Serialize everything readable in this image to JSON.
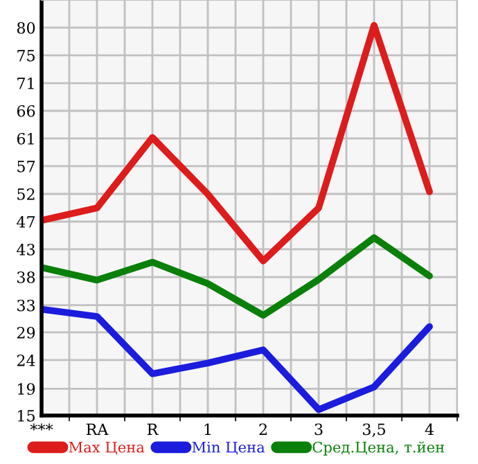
{
  "chart_data": {
    "type": "line",
    "categories": [
      "***",
      "RA",
      "R",
      "1",
      "2",
      "3",
      "3,5",
      "4"
    ],
    "series": [
      {
        "name": "Max Цена",
        "color": "#dd1c1c",
        "values": [
          47.7,
          49.8,
          61.6,
          52.1,
          40.9,
          49.8,
          80.4,
          52.5
        ]
      },
      {
        "name": "Min Цена",
        "color": "#1c1cdd",
        "values": [
          32.8,
          31.6,
          22.0,
          23.8,
          26.0,
          16.0,
          19.8,
          29.9
        ]
      },
      {
        "name": "Сред.Цена, т.йен",
        "color": "#0a800a",
        "values": [
          39.8,
          37.7,
          40.7,
          37.1,
          31.8,
          37.8,
          44.8,
          38.4
        ]
      }
    ],
    "ylim": [
      15,
      84.64
    ],
    "yticks": [
      {
        "value": 15,
        "label": "15"
      },
      {
        "value": 19.49,
        "label": "19"
      },
      {
        "value": 24.29,
        "label": "24"
      },
      {
        "value": 28.93,
        "label": "29"
      },
      {
        "value": 33.49,
        "label": "33"
      },
      {
        "value": 38.21,
        "label": "38"
      },
      {
        "value": 42.86,
        "label": "43"
      },
      {
        "value": 47.5,
        "label": "47"
      },
      {
        "value": 52.14,
        "label": "52"
      },
      {
        "value": 56.79,
        "label": "57"
      },
      {
        "value": 61.43,
        "label": "61"
      },
      {
        "value": 66.07,
        "label": "66"
      },
      {
        "value": 70.71,
        "label": "71"
      },
      {
        "value": 75.36,
        "label": "75"
      },
      {
        "value": 80,
        "label": "80"
      }
    ],
    "grid": true,
    "legend": "bottom",
    "marker": "none",
    "line_style": "solid"
  }
}
